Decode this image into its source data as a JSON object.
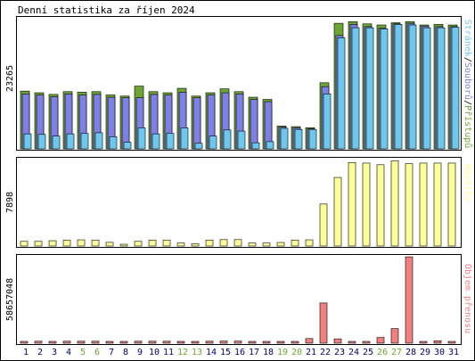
{
  "colors": {
    "hits": "#6aa632",
    "files": "#7f7fe6",
    "pages": "#6cc7ee",
    "visits": "#ffff99",
    "kbytes": "#f08080",
    "weekend_label": "#6aa632",
    "weekday_label": "#000080",
    "frame": "#000000",
    "background": "#ffffff"
  },
  "chart_data": [
    {
      "type": "bar",
      "title": "Denní statistika za říjen 2024",
      "y_max_label": "23265",
      "right_label": {
        "parts": [
          "Stránek",
          "/",
          "Souborů",
          "/",
          "Přístupů"
        ],
        "colors": [
          "#6cc7ee",
          "#000000",
          "#7f7fe6",
          "#000000",
          "#6aa632"
        ]
      },
      "categories": [
        "1",
        "2",
        "3",
        "4",
        "5",
        "6",
        "7",
        "8",
        "9",
        "10",
        "11",
        "12",
        "13",
        "14",
        "15",
        "16",
        "17",
        "18",
        "19",
        "20",
        "21",
        "22",
        "23",
        "24",
        "25",
        "26",
        "27",
        "28",
        "29",
        "30",
        "31"
      ],
      "weekend": [
        "5",
        "6",
        "12",
        "13",
        "19",
        "20",
        "26",
        "27"
      ],
      "ylim": [
        0,
        23265
      ],
      "series": [
        {
          "name": "Přístupů",
          "values": [
            10400,
            10100,
            9800,
            10300,
            10200,
            10300,
            9700,
            9500,
            11300,
            10300,
            10100,
            10900,
            9500,
            10100,
            10800,
            10300,
            9300,
            8900,
            4100,
            4000,
            3800,
            11900,
            22600,
            22900,
            22500,
            22300,
            22700,
            22900,
            22300,
            22400,
            22300
          ]
        },
        {
          "name": "Souborů",
          "values": [
            9900,
            9700,
            9400,
            9900,
            9700,
            9800,
            9300,
            9200,
            9200,
            9800,
            9700,
            10200,
            9200,
            9700,
            10100,
            9900,
            8900,
            8500,
            3900,
            3800,
            3600,
            11200,
            20400,
            22400,
            22000,
            21700,
            22500,
            22600,
            22100,
            22000,
            22000
          ]
        },
        {
          "name": "Stránek",
          "values": [
            2700,
            2600,
            2300,
            2700,
            2800,
            2900,
            2200,
            1200,
            3800,
            2700,
            2800,
            3800,
            1000,
            2300,
            3400,
            3200,
            1100,
            1300,
            3700,
            3500,
            3500,
            9900,
            20000,
            21800,
            21800,
            21600,
            22400,
            22300,
            21800,
            21800,
            21900
          ]
        }
      ]
    },
    {
      "type": "bar",
      "y_max_label": "7898",
      "right_label": {
        "parts": [
          "Návštěv"
        ],
        "colors": [
          "#ffff99"
        ]
      },
      "categories": [
        "1",
        "2",
        "3",
        "4",
        "5",
        "6",
        "7",
        "8",
        "9",
        "10",
        "11",
        "12",
        "13",
        "14",
        "15",
        "16",
        "17",
        "18",
        "19",
        "20",
        "21",
        "22",
        "23",
        "24",
        "25",
        "26",
        "27",
        "28",
        "29",
        "30",
        "31"
      ],
      "ylim": [
        0,
        7898
      ],
      "series": [
        {
          "name": "Návštěv",
          "values": [
            420,
            420,
            480,
            520,
            560,
            520,
            330,
            160,
            420,
            520,
            520,
            270,
            200,
            530,
            580,
            580,
            270,
            270,
            320,
            520,
            560,
            3800,
            6200,
            7550,
            7500,
            7350,
            7700,
            7450,
            7500,
            7500,
            7500
          ]
        }
      ]
    },
    {
      "type": "bar",
      "y_max_label": "58657048",
      "right_label": {
        "parts": [
          "Objem přenosu"
        ],
        "colors": [
          "#f08080"
        ]
      },
      "categories": [
        "1",
        "2",
        "3",
        "4",
        "5",
        "6",
        "7",
        "8",
        "9",
        "10",
        "11",
        "12",
        "13",
        "14",
        "15",
        "16",
        "17",
        "18",
        "19",
        "20",
        "21",
        "22",
        "23",
        "24",
        "25",
        "26",
        "27",
        "28",
        "29",
        "30",
        "31"
      ],
      "ylim": [
        0,
        58657048
      ],
      "series": [
        {
          "name": "Objem přenosu",
          "values": [
            1200000,
            1300000,
            1200000,
            1300000,
            1300000,
            1300000,
            1200000,
            900000,
            1300000,
            1300000,
            1300000,
            1200000,
            900000,
            1300000,
            1400000,
            1400000,
            1100000,
            1100000,
            1100000,
            1200000,
            3100000,
            27000000,
            2900000,
            1200000,
            1200000,
            3800000,
            9800000,
            58000000,
            1100000,
            1600000,
            1100000
          ]
        }
      ]
    }
  ]
}
